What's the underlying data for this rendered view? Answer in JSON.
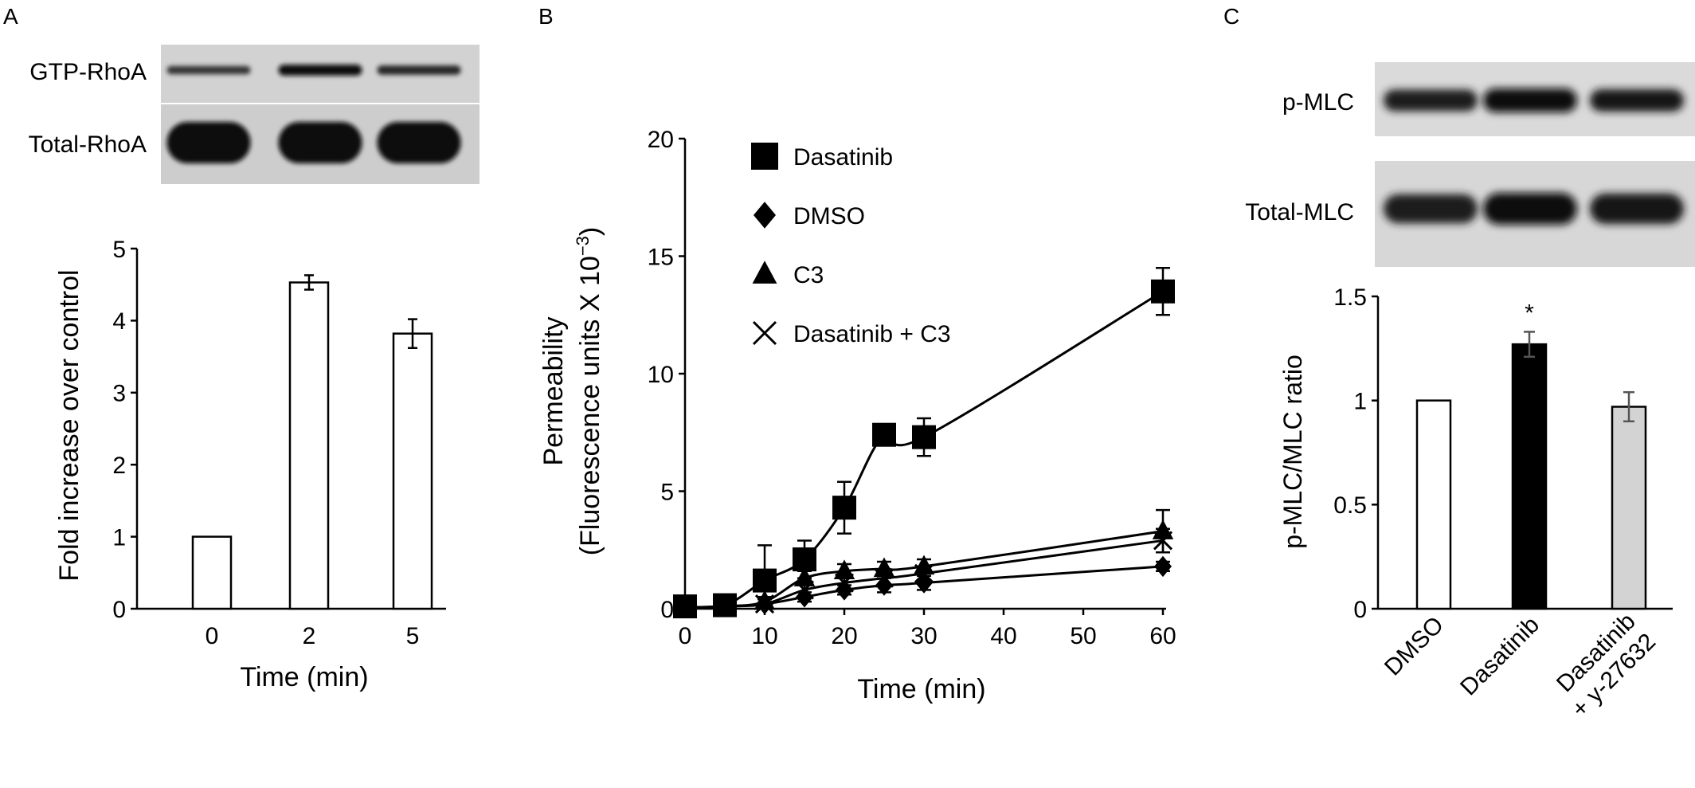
{
  "panels": {
    "A": {
      "letter": "A",
      "blot": {
        "rows": [
          {
            "label": "GTP-RhoA",
            "intensities": [
              0.45,
              0.95,
              0.65
            ]
          },
          {
            "label": "Total-RhoA",
            "intensities": [
              1.0,
              1.0,
              1.0
            ]
          }
        ]
      },
      "chart_data": {
        "type": "bar",
        "title": "",
        "xlabel": "Time (min)",
        "ylabel": "Fold increase over control",
        "categories": [
          "0",
          "2",
          "5"
        ],
        "values": [
          1.0,
          4.53,
          3.82
        ],
        "errors": [
          0,
          0.1,
          0.2
        ],
        "ylim": [
          0,
          5
        ],
        "yticks": [
          0,
          1,
          2,
          3,
          4,
          5
        ],
        "bar_color": "#ffffff",
        "grid": false
      }
    },
    "B": {
      "letter": "B",
      "chart_data": {
        "type": "line",
        "title": "",
        "xlabel": "Time (min)",
        "ylabel_line1": "Permeability",
        "ylabel_line2": "(Fluorescence units X 10",
        "ylabel_exp": "−3",
        "ylabel_close": ")",
        "xlim": [
          0,
          60
        ],
        "ylim": [
          0,
          20
        ],
        "xticks": [
          0,
          10,
          20,
          30,
          40,
          50,
          60
        ],
        "yticks": [
          0,
          5,
          10,
          15,
          20
        ],
        "grid": false,
        "legend_position": "top-left",
        "series": [
          {
            "name": "Dasatinib",
            "marker": "square",
            "x": [
              0,
              5,
              10,
              15,
              20,
              25,
              30,
              60
            ],
            "y": [
              0.1,
              0.15,
              1.2,
              2.1,
              4.3,
              7.4,
              7.3,
              13.5
            ],
            "err": [
              0.1,
              0.1,
              1.5,
              0.8,
              1.1,
              0.2,
              0.8,
              1.0
            ]
          },
          {
            "name": "DMSO",
            "marker": "diamond",
            "x": [
              0,
              5,
              10,
              15,
              20,
              25,
              30,
              60
            ],
            "y": [
              0.05,
              0.1,
              0.2,
              0.5,
              0.8,
              1.0,
              1.1,
              1.8
            ],
            "err": [
              0.05,
              0.05,
              0.1,
              0.2,
              0.2,
              0.3,
              0.3,
              0.2
            ]
          },
          {
            "name": "C3",
            "marker": "triangle",
            "x": [
              0,
              5,
              10,
              15,
              20,
              25,
              30,
              60
            ],
            "y": [
              0.05,
              0.1,
              0.3,
              1.3,
              1.6,
              1.7,
              1.8,
              3.3
            ],
            "err": [
              0.05,
              0.05,
              0.2,
              0.3,
              0.3,
              0.3,
              0.3,
              0.9
            ]
          },
          {
            "name": "Dasatinib + C3",
            "marker": "x",
            "x": [
              0,
              5,
              10,
              15,
              20,
              25,
              30,
              60
            ],
            "y": [
              0.05,
              0.1,
              0.2,
              0.8,
              1.1,
              1.3,
              1.5,
              2.9
            ],
            "err": [
              0.05,
              0.05,
              0.2,
              0.3,
              0.3,
              0.3,
              0.3,
              0.5
            ]
          }
        ]
      }
    },
    "C": {
      "letter": "C",
      "blot": {
        "rows": [
          {
            "label": "p-MLC",
            "intensities": [
              0.8,
              1.0,
              0.85
            ]
          },
          {
            "label": "Total-MLC",
            "intensities": [
              0.8,
              1.0,
              0.9
            ]
          }
        ]
      },
      "chart_data": {
        "type": "bar",
        "title": "",
        "xlabel": "",
        "ylabel": "p-MLC/MLC ratio",
        "categories": [
          "DMSO",
          "Dasatinib",
          "Dasatinib\n+ y-27632"
        ],
        "values": [
          1.0,
          1.27,
          0.97
        ],
        "errors": [
          0,
          0.06,
          0.07
        ],
        "bar_colors": [
          "#ffffff",
          "#000000",
          "#d3d3d3"
        ],
        "error_color": "#555555",
        "annotations": [
          "",
          "*",
          ""
        ],
        "ylim": [
          0,
          1.5
        ],
        "yticks": [
          "0",
          "0.5",
          "1",
          "1.5"
        ],
        "grid": false
      }
    }
  }
}
